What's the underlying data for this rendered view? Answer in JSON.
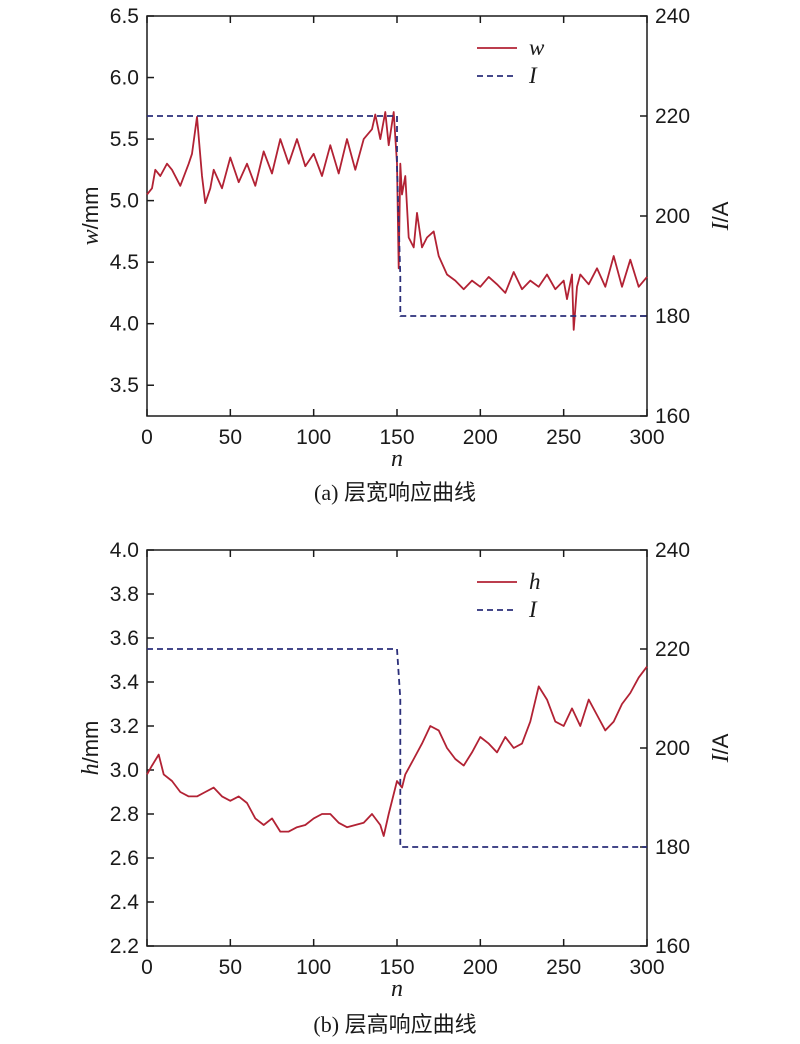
{
  "figure": {
    "caption_a": "(a) 层宽响应曲线",
    "caption_b": "(b) 层高响应曲线"
  },
  "colors": {
    "response": "#b22234",
    "current": "#2b2f7a",
    "axis": "#1a1a1a"
  },
  "chart_data": [
    {
      "type": "line",
      "caption": "(a) 层宽响应曲线",
      "xlabel": "n",
      "ylabel_left": {
        "var": "w",
        "unit": "/mm"
      },
      "ylabel_right": {
        "var": "I",
        "unit": "/A"
      },
      "xlim": [
        0,
        300
      ],
      "ylim_left": [
        3.25,
        6.5
      ],
      "ylim_right": [
        160,
        240
      ],
      "xticks": [
        0,
        50,
        100,
        150,
        200,
        250,
        300
      ],
      "yticks_left": [
        3.5,
        4.0,
        4.5,
        5.0,
        5.5,
        6.0,
        6.5
      ],
      "ytick_labels_left": [
        "3.5",
        "4.0",
        "4.5",
        "5.0",
        "5.5",
        "6.0",
        "6.5"
      ],
      "yticks_right": [
        160,
        180,
        200,
        220,
        240
      ],
      "grid": false,
      "legend_position": "top-right",
      "series": [
        {
          "name": "w",
          "axis": "left",
          "style": "solid",
          "x": [
            0,
            3,
            5,
            8,
            12,
            15,
            20,
            25,
            27,
            30,
            33,
            35,
            38,
            40,
            45,
            50,
            55,
            60,
            65,
            70,
            75,
            80,
            85,
            90,
            95,
            100,
            105,
            110,
            115,
            120,
            125,
            130,
            135,
            137,
            140,
            143,
            145,
            148,
            150,
            151,
            152,
            153,
            155,
            157,
            160,
            162,
            165,
            168,
            172,
            175,
            180,
            185,
            190,
            195,
            200,
            205,
            210,
            215,
            220,
            225,
            230,
            235,
            240,
            245,
            250,
            252,
            255,
            256,
            258,
            260,
            265,
            270,
            275,
            280,
            285,
            290,
            295,
            300
          ],
          "values": [
            5.05,
            5.1,
            5.25,
            5.2,
            5.3,
            5.25,
            5.12,
            5.3,
            5.38,
            5.68,
            5.2,
            4.98,
            5.1,
            5.25,
            5.1,
            5.35,
            5.15,
            5.3,
            5.12,
            5.4,
            5.22,
            5.5,
            5.3,
            5.5,
            5.28,
            5.38,
            5.2,
            5.45,
            5.22,
            5.5,
            5.25,
            5.5,
            5.58,
            5.7,
            5.5,
            5.72,
            5.45,
            5.72,
            5.3,
            4.45,
            5.3,
            5.05,
            5.2,
            4.7,
            4.62,
            4.9,
            4.62,
            4.7,
            4.75,
            4.55,
            4.4,
            4.35,
            4.28,
            4.35,
            4.3,
            4.38,
            4.32,
            4.25,
            4.42,
            4.28,
            4.35,
            4.3,
            4.4,
            4.28,
            4.35,
            4.2,
            4.4,
            3.95,
            4.3,
            4.4,
            4.32,
            4.45,
            4.3,
            4.55,
            4.3,
            4.52,
            4.3,
            4.38
          ]
        },
        {
          "name": "I",
          "axis": "right",
          "style": "dashed",
          "x": [
            0,
            150,
            150,
            152,
            152,
            300
          ],
          "values": [
            220,
            220,
            210,
            188,
            180,
            180
          ]
        }
      ]
    },
    {
      "type": "line",
      "caption": "(b) 层高响应曲线",
      "xlabel": "n",
      "ylabel_left": {
        "var": "h",
        "unit": "/mm"
      },
      "ylabel_right": {
        "var": "I",
        "unit": "/A"
      },
      "xlim": [
        0,
        300
      ],
      "ylim_left": [
        2.2,
        4.0
      ],
      "ylim_right": [
        160,
        240
      ],
      "xticks": [
        0,
        50,
        100,
        150,
        200,
        250,
        300
      ],
      "yticks_left": [
        2.2,
        2.4,
        2.6,
        2.8,
        3.0,
        3.2,
        3.4,
        3.6,
        3.8,
        4.0
      ],
      "ytick_labels_left": [
        "2.2",
        "2.4",
        "2.6",
        "2.8",
        "3.0",
        "3.2",
        "3.4",
        "3.6",
        "3.8",
        "4.0"
      ],
      "yticks_right": [
        160,
        180,
        200,
        220,
        240
      ],
      "grid": false,
      "legend_position": "top-right",
      "series": [
        {
          "name": "h",
          "axis": "left",
          "style": "solid",
          "x": [
            0,
            3,
            7,
            10,
            15,
            20,
            25,
            30,
            35,
            40,
            45,
            50,
            55,
            60,
            65,
            70,
            75,
            80,
            85,
            90,
            95,
            100,
            105,
            110,
            115,
            120,
            125,
            130,
            135,
            140,
            142,
            145,
            150,
            153,
            155,
            160,
            165,
            170,
            175,
            180,
            185,
            190,
            195,
            200,
            205,
            210,
            215,
            220,
            225,
            230,
            235,
            240,
            245,
            250,
            255,
            260,
            265,
            270,
            275,
            280,
            285,
            290,
            295,
            300
          ],
          "values": [
            2.98,
            3.02,
            3.07,
            2.98,
            2.95,
            2.9,
            2.88,
            2.88,
            2.9,
            2.92,
            2.88,
            2.86,
            2.88,
            2.85,
            2.78,
            2.75,
            2.78,
            2.72,
            2.72,
            2.74,
            2.75,
            2.78,
            2.8,
            2.8,
            2.76,
            2.74,
            2.75,
            2.76,
            2.8,
            2.75,
            2.7,
            2.8,
            2.95,
            2.92,
            2.98,
            3.05,
            3.12,
            3.2,
            3.18,
            3.1,
            3.05,
            3.02,
            3.08,
            3.15,
            3.12,
            3.08,
            3.15,
            3.1,
            3.12,
            3.22,
            3.38,
            3.32,
            3.22,
            3.2,
            3.28,
            3.2,
            3.32,
            3.25,
            3.18,
            3.22,
            3.3,
            3.35,
            3.42,
            3.47
          ]
        },
        {
          "name": "I",
          "axis": "right",
          "style": "dashed",
          "x": [
            0,
            150,
            152,
            152,
            300
          ],
          "values": [
            220,
            220,
            210,
            180,
            180
          ]
        }
      ]
    }
  ]
}
